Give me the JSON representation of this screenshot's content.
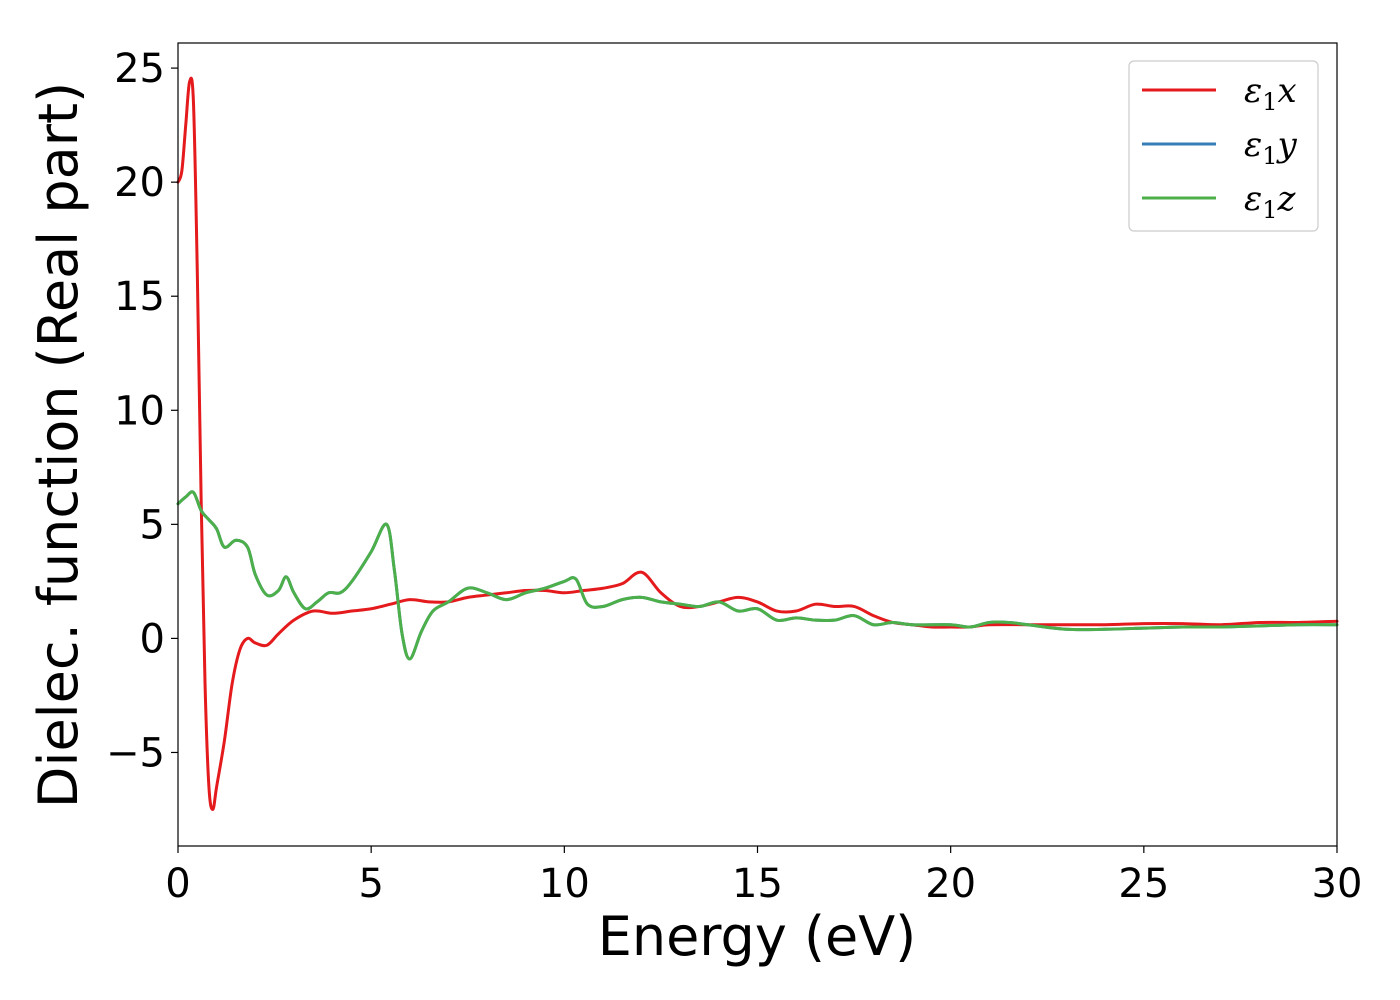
{
  "chart_data": {
    "type": "line",
    "title": "",
    "xlabel": "Energy (eV)",
    "ylabel": "Dielec. function (Real part)",
    "xlim": [
      0,
      30
    ],
    "ylim": [
      -9.1,
      26.1
    ],
    "xticks": [
      0,
      5,
      10,
      15,
      20,
      25,
      30
    ],
    "yticks": [
      -5,
      0,
      5,
      10,
      15,
      20,
      25
    ],
    "xtick_labels": [
      "0",
      "5",
      "10",
      "15",
      "20",
      "25",
      "30"
    ],
    "ytick_labels": [
      "−5",
      "0",
      "5",
      "10",
      "15",
      "20",
      "25"
    ],
    "grid": false,
    "legend_position": "top-right",
    "series": [
      {
        "name": "ε₁x",
        "legend_base": "ε",
        "legend_sub": "1",
        "legend_tail": "x",
        "color": "#e41a1c",
        "x": [
          0,
          0.1,
          0.2,
          0.3,
          0.4,
          0.5,
          0.6,
          0.7,
          0.8,
          0.9,
          1.0,
          1.2,
          1.4,
          1.6,
          1.8,
          2.0,
          2.3,
          2.6,
          3.0,
          3.5,
          4.0,
          4.5,
          5.0,
          5.5,
          6.0,
          6.5,
          7.0,
          7.5,
          8.0,
          8.5,
          9.0,
          9.5,
          10.0,
          10.5,
          11.0,
          11.5,
          12.0,
          12.5,
          13.0,
          13.5,
          14.0,
          14.5,
          15.0,
          15.5,
          16.0,
          16.5,
          17.0,
          17.5,
          18.0,
          18.5,
          19.0,
          19.5,
          20.0,
          20.5,
          21.0,
          22.0,
          23.0,
          24.0,
          25.0,
          26.0,
          27.0,
          28.0,
          29.0,
          30.0
        ],
        "y": [
          20.0,
          20.5,
          22.5,
          24.4,
          23.5,
          16.0,
          6.0,
          -2.0,
          -6.5,
          -7.5,
          -6.5,
          -4.5,
          -2.0,
          -0.5,
          0.0,
          -0.2,
          -0.3,
          0.2,
          0.8,
          1.2,
          1.1,
          1.2,
          1.3,
          1.5,
          1.7,
          1.6,
          1.6,
          1.8,
          1.9,
          2.0,
          2.1,
          2.1,
          2.0,
          2.1,
          2.2,
          2.4,
          2.9,
          2.0,
          1.4,
          1.4,
          1.6,
          1.8,
          1.6,
          1.2,
          1.2,
          1.5,
          1.4,
          1.4,
          1.0,
          0.7,
          0.6,
          0.5,
          0.5,
          0.5,
          0.6,
          0.6,
          0.6,
          0.6,
          0.65,
          0.65,
          0.6,
          0.7,
          0.7,
          0.75
        ]
      },
      {
        "name": "ε₁y",
        "legend_base": "ε",
        "legend_sub": "1",
        "legend_tail": "y",
        "color": "#377eb8",
        "x": [
          0,
          0.2,
          0.4,
          0.6,
          0.8,
          1.0,
          1.2,
          1.5,
          1.8,
          2.0,
          2.3,
          2.6,
          2.8,
          3.0,
          3.3,
          3.6,
          3.9,
          4.2,
          4.5,
          5.0,
          5.4,
          5.6,
          5.8,
          6.0,
          6.3,
          6.6,
          7.0,
          7.5,
          8.0,
          8.5,
          9.0,
          9.5,
          10.0,
          10.3,
          10.6,
          11.0,
          11.5,
          12.0,
          12.5,
          13.0,
          13.5,
          14.0,
          14.5,
          15.0,
          15.5,
          16.0,
          16.5,
          17.0,
          17.5,
          18.0,
          18.5,
          19.0,
          20.0,
          20.5,
          21.0,
          21.5,
          22.0,
          23.0,
          24.0,
          25.0,
          26.0,
          27.0,
          28.0,
          29.0,
          30.0
        ],
        "y": [
          5.9,
          6.2,
          6.4,
          5.6,
          5.2,
          4.8,
          4.0,
          4.3,
          4.0,
          2.8,
          1.9,
          2.1,
          2.7,
          2.0,
          1.3,
          1.6,
          2.0,
          2.0,
          2.5,
          3.8,
          5.0,
          3.0,
          0.2,
          -0.9,
          0.3,
          1.2,
          1.6,
          2.2,
          2.0,
          1.7,
          2.0,
          2.2,
          2.5,
          2.6,
          1.5,
          1.4,
          1.7,
          1.8,
          1.6,
          1.5,
          1.4,
          1.6,
          1.2,
          1.3,
          0.8,
          0.9,
          0.8,
          0.8,
          1.0,
          0.6,
          0.7,
          0.6,
          0.6,
          0.5,
          0.7,
          0.7,
          0.6,
          0.4,
          0.4,
          0.45,
          0.5,
          0.5,
          0.55,
          0.6,
          0.6
        ]
      },
      {
        "name": "ε₁z",
        "legend_base": "ε",
        "legend_sub": "1",
        "legend_tail": "z",
        "color": "#4daf4a",
        "x": [
          0,
          0.2,
          0.4,
          0.6,
          0.8,
          1.0,
          1.2,
          1.5,
          1.8,
          2.0,
          2.3,
          2.6,
          2.8,
          3.0,
          3.3,
          3.6,
          3.9,
          4.2,
          4.5,
          5.0,
          5.4,
          5.6,
          5.8,
          6.0,
          6.3,
          6.6,
          7.0,
          7.5,
          8.0,
          8.5,
          9.0,
          9.5,
          10.0,
          10.3,
          10.6,
          11.0,
          11.5,
          12.0,
          12.5,
          13.0,
          13.5,
          14.0,
          14.5,
          15.0,
          15.5,
          16.0,
          16.5,
          17.0,
          17.5,
          18.0,
          18.5,
          19.0,
          20.0,
          20.5,
          21.0,
          21.5,
          22.0,
          23.0,
          24.0,
          25.0,
          26.0,
          27.0,
          28.0,
          29.0,
          30.0
        ],
        "y": [
          5.9,
          6.2,
          6.4,
          5.6,
          5.2,
          4.8,
          4.0,
          4.3,
          4.0,
          2.8,
          1.9,
          2.1,
          2.7,
          2.0,
          1.3,
          1.6,
          2.0,
          2.0,
          2.5,
          3.8,
          5.0,
          3.0,
          0.2,
          -0.9,
          0.3,
          1.2,
          1.6,
          2.2,
          2.0,
          1.7,
          2.0,
          2.2,
          2.5,
          2.6,
          1.5,
          1.4,
          1.7,
          1.8,
          1.6,
          1.5,
          1.4,
          1.6,
          1.2,
          1.3,
          0.8,
          0.9,
          0.8,
          0.8,
          1.0,
          0.6,
          0.7,
          0.6,
          0.6,
          0.5,
          0.7,
          0.7,
          0.6,
          0.4,
          0.4,
          0.45,
          0.5,
          0.5,
          0.55,
          0.6,
          0.6
        ]
      }
    ]
  }
}
